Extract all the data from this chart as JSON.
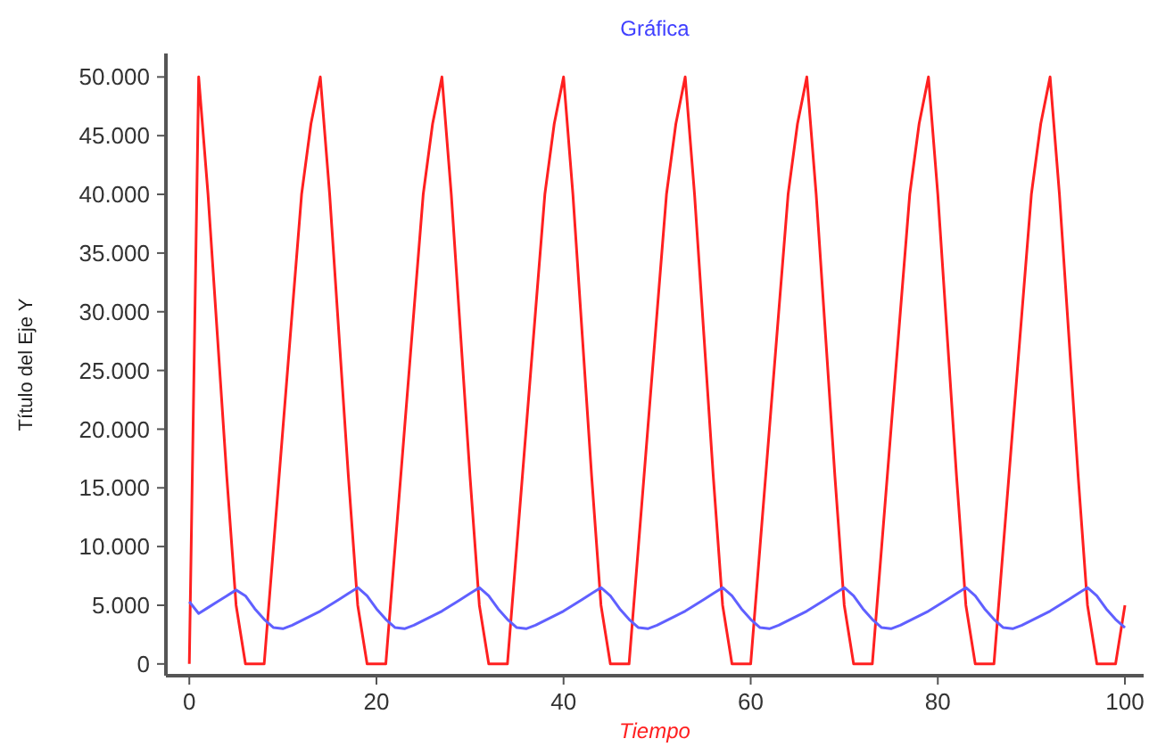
{
  "chart_data": {
    "type": "line",
    "title": "Gráfica",
    "xlabel": "Tiempo",
    "ylabel": "Título del Eje Y",
    "x": [
      0,
      1,
      2,
      3,
      4,
      5,
      6,
      7,
      8,
      9,
      10,
      11,
      12,
      13,
      14,
      15,
      16,
      17,
      18,
      19,
      20,
      21,
      22,
      23,
      24,
      25,
      26,
      27,
      28,
      29,
      30,
      31,
      32,
      33,
      34,
      35,
      36,
      37,
      38,
      39,
      40,
      41,
      42,
      43,
      44,
      45,
      46,
      47,
      48,
      49,
      50,
      51,
      52,
      53,
      54,
      55,
      56,
      57,
      58,
      59,
      60,
      61,
      62,
      63,
      64,
      65,
      66,
      67,
      68,
      69,
      70,
      71,
      72,
      73,
      74,
      75,
      76,
      77,
      78,
      79,
      80,
      81,
      82,
      83,
      84,
      85,
      86,
      87,
      88,
      89,
      90,
      91,
      92,
      93,
      94,
      95,
      96,
      97,
      98,
      99,
      100
    ],
    "series": [
      {
        "color": "#ff2020",
        "values": [
          0,
          50000,
          40000,
          28000,
          16000,
          5000,
          0,
          0,
          0,
          10000,
          20000,
          30000,
          40000,
          46000,
          50000,
          40000,
          28000,
          16000,
          5000,
          0,
          0,
          0,
          10000,
          20000,
          30000,
          40000,
          46000,
          50000,
          40000,
          28000,
          16000,
          5000,
          0,
          0,
          0,
          10000,
          20000,
          30000,
          40000,
          46000,
          50000,
          40000,
          28000,
          16000,
          5000,
          0,
          0,
          0,
          10000,
          20000,
          30000,
          40000,
          46000,
          50000,
          40000,
          28000,
          16000,
          5000,
          0,
          0,
          0,
          10000,
          20000,
          30000,
          40000,
          46000,
          50000,
          40000,
          28000,
          16000,
          5000,
          0,
          0,
          0,
          10000,
          20000,
          30000,
          40000,
          46000,
          50000,
          40000,
          28000,
          16000,
          5000,
          0,
          0,
          0,
          10000,
          20000,
          30000,
          40000,
          46000,
          50000,
          40000,
          28000,
          16000,
          5000,
          0,
          0,
          0,
          5000
        ]
      },
      {
        "color": "#6060ff",
        "values": [
          5300,
          4300,
          4800,
          5300,
          5800,
          6300,
          5800,
          4700,
          3800,
          3100,
          3000,
          3300,
          3700,
          4100,
          4500,
          5000,
          5500,
          6000,
          6500,
          5800,
          4700,
          3800,
          3100,
          3000,
          3300,
          3700,
          4100,
          4500,
          5000,
          5500,
          6000,
          6500,
          5800,
          4700,
          3800,
          3100,
          3000,
          3300,
          3700,
          4100,
          4500,
          5000,
          5500,
          6000,
          6500,
          5800,
          4700,
          3800,
          3100,
          3000,
          3300,
          3700,
          4100,
          4500,
          5000,
          5500,
          6000,
          6500,
          5800,
          4700,
          3800,
          3100,
          3000,
          3300,
          3700,
          4100,
          4500,
          5000,
          5500,
          6000,
          6500,
          5800,
          4700,
          3800,
          3100,
          3000,
          3300,
          3700,
          4100,
          4500,
          5000,
          5500,
          6000,
          6500,
          5800,
          4700,
          3800,
          3100,
          3000,
          3300,
          3700,
          4100,
          4500,
          5000,
          5500,
          6000,
          6500,
          5800,
          4700,
          3800,
          3100
        ]
      }
    ],
    "xlim": [
      -2.5,
      102
    ],
    "xticks": [
      0,
      20,
      40,
      60,
      80,
      100
    ],
    "ylim": [
      -1000,
      52000
    ],
    "yticks": [
      0,
      {
        "value": 5000,
        "label": "5.000"
      },
      {
        "value": 10000,
        "label": "10.000"
      },
      {
        "value": 15000,
        "label": "15.000"
      },
      {
        "value": 20000,
        "label": "20.000"
      },
      {
        "value": 25000,
        "label": "25.000"
      },
      {
        "value": 30000,
        "label": "30.000"
      },
      {
        "value": 35000,
        "label": "35.000"
      },
      {
        "value": 40000,
        "label": "40.000"
      },
      {
        "value": 45000,
        "label": "45.000"
      },
      {
        "value": 50000,
        "label": "50.000"
      }
    ],
    "grid": false,
    "marker": "none",
    "line_style": "solid"
  }
}
